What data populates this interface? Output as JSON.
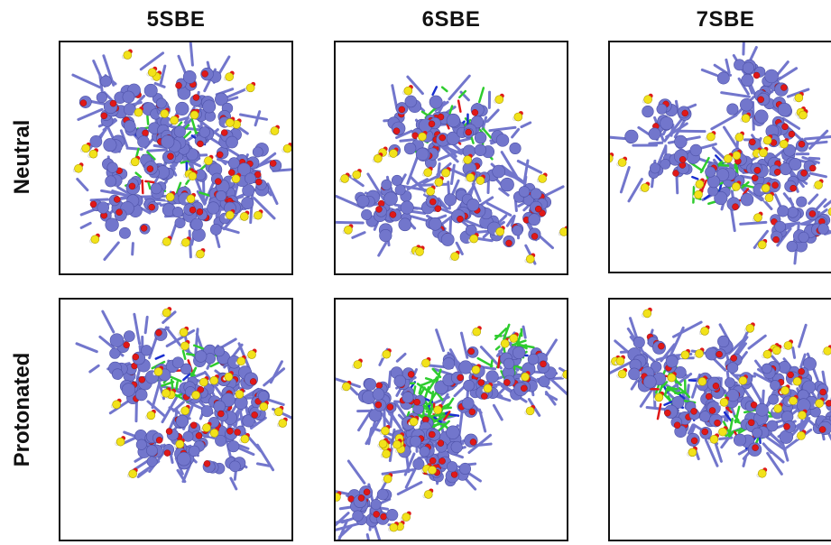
{
  "columns": [
    "5SBE",
    "6SBE",
    "7SBE"
  ],
  "rows": [
    "Neutral",
    "Protonated"
  ],
  "colors": {
    "cyclodextrin_carbon": "#7276cc",
    "oxygen": "#e01818",
    "sulfur": "#f2e21a",
    "hydrogen": "#f2f2f2",
    "drug_carbon": "#2ecc2e",
    "nitrogen": "#1a2fd0"
  },
  "panels": [
    {
      "name": "5SBE-neutral",
      "icon": "molecular-snapshot"
    },
    {
      "name": "6SBE-neutral",
      "icon": "molecular-snapshot"
    },
    {
      "name": "7SBE-neutral",
      "icon": "molecular-snapshot"
    },
    {
      "name": "5SBE-protonated",
      "icon": "molecular-snapshot"
    },
    {
      "name": "6SBE-protonated",
      "icon": "molecular-snapshot"
    },
    {
      "name": "7SBE-protonated",
      "icon": "molecular-snapshot"
    }
  ]
}
